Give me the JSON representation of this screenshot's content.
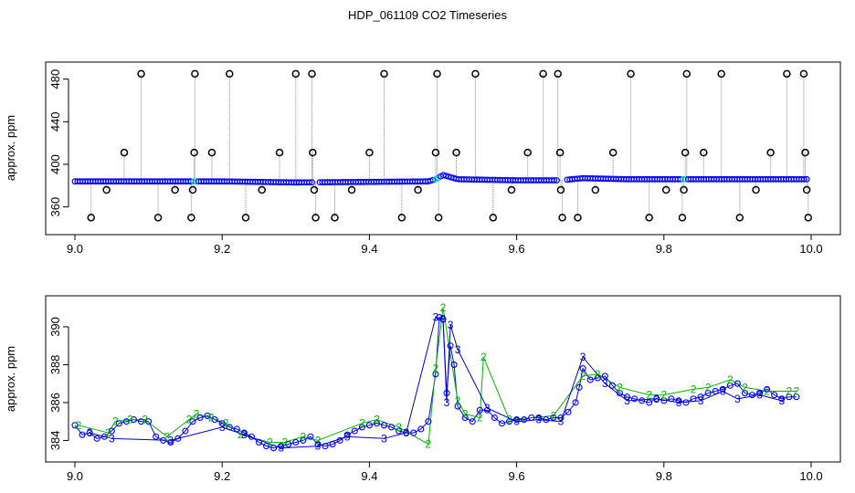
{
  "title": "HDP_061109  CO2 Timeseries",
  "colors": {
    "outlier": "#000000",
    "series1": "#0000ff",
    "series2": "#00b400",
    "series3": "#0000cc",
    "highlight": "#00cccc",
    "spike": "#888888"
  },
  "chart_data": [
    {
      "type": "scatter",
      "title": "",
      "xlabel": "",
      "ylabel": "approx. ppm",
      "xlim": [
        9.0,
        10.0
      ],
      "ylim": [
        340,
        490
      ],
      "xticks": [
        9.0,
        9.2,
        9.4,
        9.6,
        9.8,
        10.0
      ],
      "xtick_labels": [
        "9.0",
        "9.2",
        "9.4",
        "9.6",
        "9.8",
        "10.0"
      ],
      "yticks": [
        360,
        400,
        440,
        480
      ],
      "ytick_labels": [
        "360",
        "400",
        "440",
        "480"
      ],
      "grid": false,
      "legend": "none",
      "baseline": {
        "x": [
          9.0,
          9.1,
          9.2,
          9.3,
          9.4,
          9.48,
          9.49,
          9.5,
          9.52,
          9.6,
          9.66,
          9.69,
          9.75,
          9.8,
          9.85,
          9.9,
          9.95,
          9.99
        ],
        "y": [
          384,
          384,
          384,
          383,
          383.5,
          384,
          386,
          390,
          386,
          385,
          385,
          387,
          386,
          386,
          386,
          386,
          386,
          386
        ]
      },
      "outliers": {
        "x": [
          9.022,
          9.043,
          9.067,
          9.09,
          9.113,
          9.136,
          9.158,
          9.16,
          9.162,
          9.163,
          9.186,
          9.21,
          9.232,
          9.254,
          9.278,
          9.3,
          9.322,
          9.323,
          9.325,
          9.327,
          9.353,
          9.376,
          9.4,
          9.42,
          9.444,
          9.466,
          9.49,
          9.492,
          9.494,
          9.518,
          9.544,
          9.568,
          9.593,
          9.615,
          9.636,
          9.656,
          9.659,
          9.66,
          9.662,
          9.683,
          9.707,
          9.731,
          9.755,
          9.78,
          9.803,
          9.825,
          9.827,
          9.829,
          9.831,
          9.854,
          9.878,
          9.903,
          9.925,
          9.945,
          9.967,
          9.99,
          9.992,
          9.994,
          9.996
        ],
        "y": [
          350,
          376,
          411,
          485,
          350,
          376,
          350,
          376,
          411,
          485,
          411,
          485,
          350,
          376,
          411,
          485,
          485,
          411,
          376,
          350,
          350,
          376,
          411,
          485,
          350,
          376,
          411,
          485,
          350,
          411,
          485,
          350,
          376,
          411,
          485,
          485,
          411,
          376,
          350,
          350,
          376,
          411,
          485,
          350,
          376,
          350,
          376,
          411,
          485,
          411,
          485,
          350,
          376,
          411,
          485,
          485,
          411,
          376,
          350
        ]
      }
    },
    {
      "type": "line",
      "title": "",
      "xlabel": "",
      "ylabel": "approx. ppm",
      "xlim": [
        9.0,
        10.0
      ],
      "ylim": [
        383.2,
        391.3
      ],
      "xticks": [
        9.0,
        9.2,
        9.4,
        9.6,
        9.8,
        10.0
      ],
      "xtick_labels": [
        "9.0",
        "9.2",
        "9.4",
        "9.6",
        "9.8",
        "10.0"
      ],
      "yticks": [
        384,
        386,
        388,
        390
      ],
      "ytick_labels": [
        "384",
        "386",
        "388",
        "390"
      ],
      "grid": false,
      "legend": "none",
      "series": [
        {
          "marker": "o",
          "x": [
            9.0,
            9.01,
            9.02,
            9.03,
            9.04,
            9.05,
            9.06,
            9.07,
            9.08,
            9.09,
            9.1,
            9.11,
            9.12,
            9.13,
            9.14,
            9.15,
            9.16,
            9.17,
            9.18,
            9.19,
            9.2,
            9.21,
            9.22,
            9.23,
            9.24,
            9.25,
            9.26,
            9.27,
            9.28,
            9.29,
            9.3,
            9.31,
            9.32,
            9.33,
            9.34,
            9.35,
            9.36,
            9.37,
            9.38,
            9.39,
            9.4,
            9.41,
            9.42,
            9.43,
            9.44,
            9.45,
            9.46,
            9.47,
            9.48,
            9.49,
            9.495,
            9.5,
            9.505,
            9.51,
            9.515,
            9.52,
            9.53,
            9.54,
            9.55,
            9.56,
            9.57,
            9.58,
            9.59,
            9.6,
            9.61,
            9.62,
            9.63,
            9.64,
            9.65,
            9.66,
            9.67,
            9.68,
            9.685,
            9.69,
            9.7,
            9.71,
            9.72,
            9.73,
            9.74,
            9.75,
            9.76,
            9.77,
            9.78,
            9.79,
            9.8,
            9.81,
            9.82,
            9.83,
            9.84,
            9.85,
            9.86,
            9.87,
            9.88,
            9.89,
            9.9,
            9.91,
            9.92,
            9.93,
            9.94,
            9.95,
            9.96,
            9.97,
            9.98
          ],
          "y": [
            384.8,
            384.3,
            384.4,
            384.1,
            384.2,
            384.5,
            384.9,
            385.0,
            385.1,
            385.0,
            385.0,
            384.2,
            384.0,
            383.9,
            384.1,
            384.5,
            385.0,
            385.2,
            385.3,
            385.1,
            384.9,
            384.7,
            384.6,
            384.4,
            384.2,
            383.9,
            383.7,
            383.6,
            383.7,
            383.8,
            383.9,
            384.0,
            384.2,
            383.8,
            383.7,
            383.8,
            384.0,
            384.3,
            384.5,
            384.7,
            384.8,
            384.9,
            384.8,
            384.7,
            384.5,
            384.4,
            384.4,
            384.6,
            385.0,
            387.5,
            390.5,
            390.4,
            386.5,
            389.0,
            388.0,
            385.8,
            385.2,
            385.0,
            385.6,
            385.6,
            385.2,
            384.9,
            385.0,
            385.1,
            385.1,
            385.2,
            385.2,
            385.1,
            385.2,
            385.2,
            385.5,
            386.0,
            386.8,
            387.8,
            387.2,
            387.3,
            387.4,
            386.9,
            386.5,
            386.3,
            386.2,
            386.1,
            386.0,
            386.2,
            386.1,
            386.2,
            386.1,
            386.0,
            386.2,
            386.3,
            386.5,
            386.6,
            386.7,
            386.9,
            387.0,
            386.5,
            386.4,
            386.5,
            386.7,
            386.4,
            386.2,
            386.3,
            386.3
          ]
        },
        {
          "marker": "2",
          "x": [
            9.005,
            9.045,
            9.055,
            9.075,
            9.095,
            9.125,
            9.155,
            9.165,
            9.185,
            9.205,
            9.225,
            9.265,
            9.285,
            9.31,
            9.33,
            9.39,
            9.41,
            9.44,
            9.48,
            9.49,
            9.5,
            9.52,
            9.53,
            9.55,
            9.555,
            9.59,
            9.65,
            9.69,
            9.71,
            9.74,
            9.78,
            9.8,
            9.84,
            9.86,
            9.89,
            9.91,
            9.94,
            9.97,
            9.98
          ],
          "y": [
            384.8,
            384.4,
            385.0,
            385.1,
            385.1,
            384.2,
            385.1,
            385.4,
            385.2,
            384.9,
            384.3,
            383.9,
            383.9,
            384.2,
            384.0,
            384.9,
            385.1,
            384.7,
            383.8,
            387.8,
            391.0,
            386.1,
            385.4,
            385.2,
            388.4,
            385.1,
            385.3,
            387.4,
            387.5,
            386.8,
            386.4,
            386.4,
            386.7,
            386.8,
            387.2,
            386.8,
            386.6,
            386.6,
            386.6
          ]
        },
        {
          "marker": "3",
          "x": [
            9.02,
            9.05,
            9.13,
            9.2,
            9.23,
            9.28,
            9.33,
            9.37,
            9.42,
            9.45,
            9.49,
            9.5,
            9.505,
            9.51,
            9.52,
            9.56,
            9.6,
            9.63,
            9.66,
            9.69,
            9.72,
            9.75,
            9.79,
            9.82,
            9.85,
            9.88,
            9.9,
            9.93,
            9.96
          ],
          "y": [
            384.4,
            384.1,
            384.0,
            384.7,
            384.3,
            383.6,
            383.7,
            384.2,
            384.1,
            384.4,
            390.5,
            390.4,
            386.0,
            390.1,
            388.8,
            385.7,
            385.0,
            385.1,
            385.0,
            388.4,
            387.0,
            386.1,
            386.2,
            386.0,
            386.1,
            386.6,
            386.2,
            386.4,
            386.1
          ]
        }
      ]
    }
  ]
}
